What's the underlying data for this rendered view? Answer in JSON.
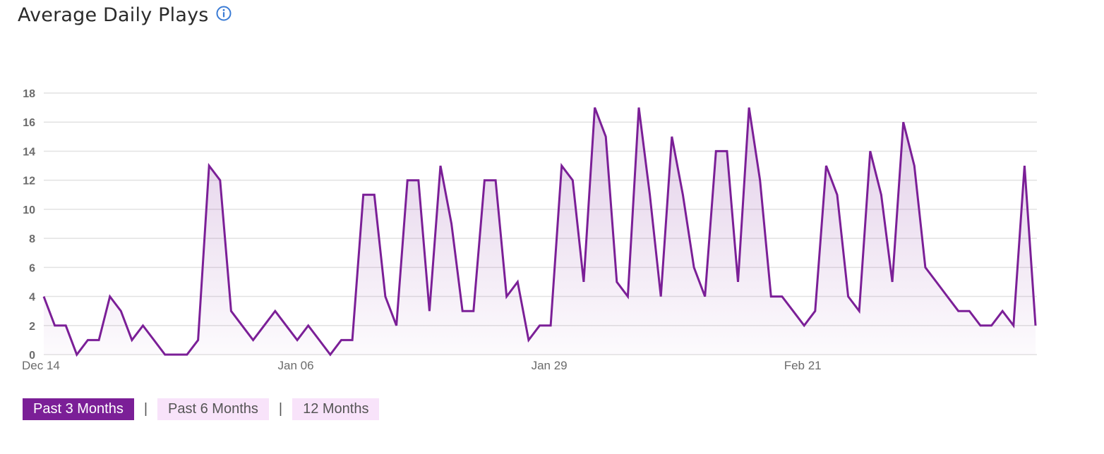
{
  "title": "Average Daily Plays",
  "info_icon": "info-circle-icon",
  "colors": {
    "line": "#7b1f97",
    "accent": "#7b1f97",
    "inactive_bg": "#f8e3fa",
    "grid": "#e2e2e2",
    "info": "#3a7bd5"
  },
  "range_buttons": [
    {
      "label": "Past 3 Months",
      "active": true
    },
    {
      "label": "Past 6 Months",
      "active": false
    },
    {
      "label": "12 Months",
      "active": false
    }
  ],
  "separator": "|",
  "chart_data": {
    "type": "line",
    "title": "Average Daily Plays",
    "xlabel": "",
    "ylabel": "",
    "ylim": [
      0,
      18
    ],
    "yticks": [
      0,
      2,
      4,
      6,
      8,
      10,
      12,
      14,
      16,
      18
    ],
    "grid": true,
    "x_tick_labels": [
      {
        "label": "Dec 14",
        "index": 0
      },
      {
        "label": "Jan 06",
        "index": 23
      },
      {
        "label": "Jan 29",
        "index": 46
      },
      {
        "label": "Feb 21",
        "index": 69
      }
    ],
    "series": [
      {
        "name": "Average Daily Plays",
        "values": [
          4,
          2,
          2,
          0,
          1,
          1,
          4,
          3,
          1,
          2,
          1,
          0,
          0,
          0,
          1,
          13,
          12,
          3,
          2,
          1,
          2,
          3,
          2,
          1,
          2,
          1,
          0,
          1,
          1,
          11,
          11,
          4,
          2,
          12,
          12,
          3,
          13,
          9,
          3,
          3,
          12,
          12,
          4,
          5,
          1,
          2,
          2,
          13,
          12,
          5,
          17,
          15,
          5,
          4,
          17,
          11,
          4,
          15,
          11,
          6,
          4,
          14,
          14,
          5,
          17,
          12,
          4,
          4,
          3,
          2,
          3,
          13,
          11,
          4,
          3,
          14,
          11,
          5,
          16,
          13,
          6,
          5,
          4,
          3,
          3,
          2,
          2,
          3,
          2,
          13,
          2
        ]
      }
    ]
  }
}
